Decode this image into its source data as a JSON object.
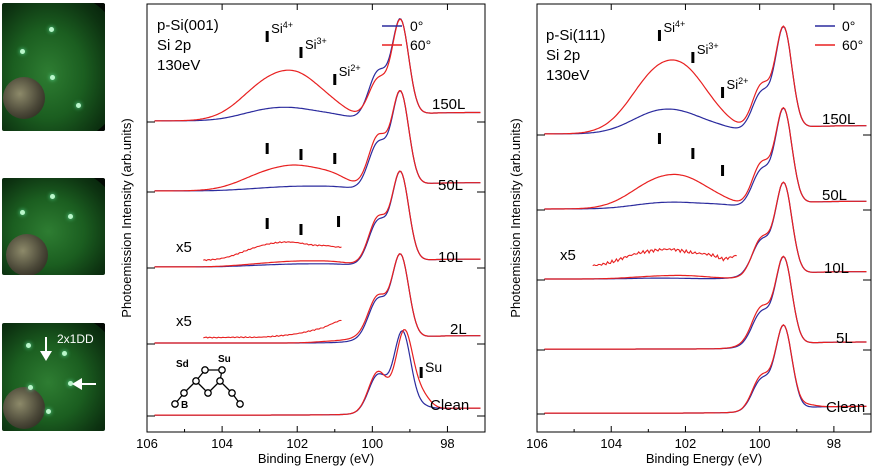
{
  "leed_panels": [
    {
      "annotation": ""
    },
    {
      "annotation": ""
    },
    {
      "annotation": "2x1DD"
    }
  ],
  "chart_data": [
    {
      "type": "line",
      "title_lines": [
        "p-Si(001)",
        "Si 2p",
        "130eV"
      ],
      "xlabel": "Binding Energy (eV)",
      "ylabel": "Photoemission Intensity (arb.units)",
      "xlim": [
        106,
        97
      ],
      "xticks": [
        "106",
        "104",
        "102",
        "100",
        "98"
      ],
      "legend": [
        "0°",
        "60°"
      ],
      "series_colors": {
        "0°": "#2b2b9e",
        "60°": "#e82020"
      },
      "curves": [
        "Clean",
        "2L",
        "10L",
        "50L",
        "150L"
      ],
      "oxide_markers": [
        {
          "label": "Si4+",
          "sup": "4+",
          "energy": 102.8
        },
        {
          "label": "Si3+",
          "sup": "3+",
          "energy": 101.9
        },
        {
          "label": "Si2+",
          "sup": "2+",
          "energy": 101.0
        }
      ],
      "x5_labels": [
        "x5",
        "x5"
      ],
      "surface_label": "Su",
      "inset_labels": {
        "sd": "Sd",
        "su": "Su",
        "b": "B"
      }
    },
    {
      "type": "line",
      "title_lines": [
        "p-Si(111)",
        "Si 2p",
        "130eV"
      ],
      "xlabel": "Binding Energy (eV)",
      "ylabel": "Photoemission Intensity (arb.units)",
      "xlim": [
        106,
        97
      ],
      "xticks": [
        "106",
        "104",
        "102",
        "100",
        "98"
      ],
      "legend": [
        "0°",
        "60°"
      ],
      "series_colors": {
        "0°": "#2b2b9e",
        "60°": "#e82020"
      },
      "curves": [
        "Clean",
        "5L",
        "10L",
        "50L",
        "150L"
      ],
      "oxide_markers": [
        {
          "label": "Si4+",
          "sup": "4+",
          "energy": 102.7
        },
        {
          "label": "Si3+",
          "sup": "3+",
          "energy": 101.8
        },
        {
          "label": "Si2+",
          "sup": "2+",
          "energy": 101.0
        }
      ],
      "x5_labels": [
        "x5"
      ]
    }
  ]
}
